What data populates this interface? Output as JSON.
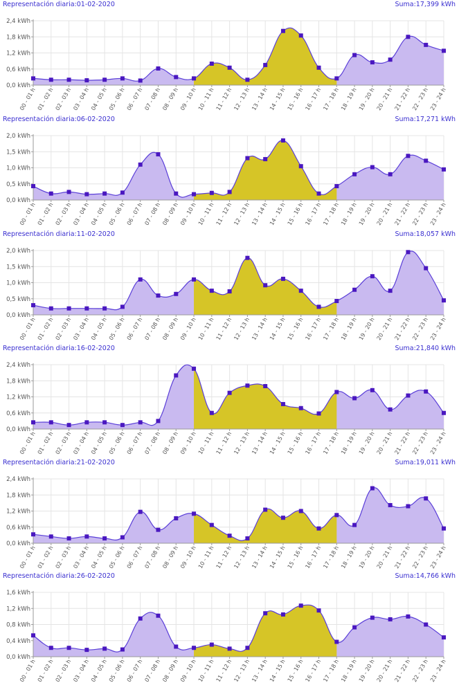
{
  "colors": {
    "accent_text": "#3a2fd0",
    "area_base": "#c9baf0",
    "area_highlight": "#d6c527",
    "line": "#5a3ed8",
    "marker": "#4a18c0",
    "grid": "#e4e4e4",
    "axis": "#9a9a9a"
  },
  "chart_data": [
    {
      "type": "area",
      "title": "Representación diaria:01-02-2020",
      "total": "Suma:17,399 kWh",
      "categories": [
        "00 - 01 h",
        "01 - 02 h",
        "02 - 03 h",
        "03 - 04 h",
        "04 - 05 h",
        "05 - 06 h",
        "06 - 07 h",
        "07 - 08 h",
        "08 - 09 h",
        "09 - 10 h",
        "10 - 11 h",
        "11 - 12 h",
        "12 - 13 h",
        "13 - 14 h",
        "14 - 15 h",
        "15 - 16 h",
        "16 - 17 h",
        "17 - 18 h",
        "18 - 19 h",
        "19 - 20 h",
        "20 - 21 h",
        "21 - 22 h",
        "22 - 23 h",
        "23 - 24 h"
      ],
      "values": [
        0.25,
        0.2,
        0.2,
        0.18,
        0.2,
        0.25,
        0.17,
        0.62,
        0.3,
        0.25,
        0.8,
        0.65,
        0.2,
        0.75,
        2.02,
        1.85,
        0.65,
        0.25,
        1.12,
        0.85,
        0.95,
        1.8,
        1.5,
        1.28
      ],
      "highlight_range": [
        "09 - 10 h",
        "17 - 18 h"
      ],
      "y_ticks": [
        "0,0 kWh",
        "0,6 kWh",
        "1,2 kWh",
        "1,8 kWh",
        "2,4 kWh"
      ],
      "ylim": [
        0,
        2.4
      ],
      "grid": true
    },
    {
      "type": "area",
      "title": "Representación diaria:06-02-2020",
      "total": "Suma:17,271 kWh",
      "categories": [
        "00 - 01 h",
        "01 - 02 h",
        "02 - 03 h",
        "03 - 04 h",
        "04 - 05 h",
        "05 - 06 h",
        "06 - 07 h",
        "07 - 08 h",
        "08 - 09 h",
        "09 - 10 h",
        "10 - 11 h",
        "11 - 12 h",
        "12 - 13 h",
        "13 - 14 h",
        "14 - 15 h",
        "15 - 16 h",
        "16 - 17 h",
        "17 - 18 h",
        "18 - 19 h",
        "19 - 20 h",
        "20 - 21 h",
        "21 - 22 h",
        "22 - 23 h",
        "23 - 24 h"
      ],
      "values": [
        0.43,
        0.2,
        0.25,
        0.18,
        0.2,
        0.23,
        1.1,
        1.42,
        0.2,
        0.18,
        0.22,
        0.25,
        1.3,
        1.27,
        1.85,
        1.05,
        0.2,
        0.43,
        0.8,
        1.02,
        0.8,
        1.37,
        1.22,
        0.95
      ],
      "highlight_range": [
        "09 - 10 h",
        "17 - 18 h"
      ],
      "y_ticks": [
        "0,0 kWh",
        "0,5 kWh",
        "1,0 kWh",
        "1,5 kWh",
        "2,0 kWh"
      ],
      "ylim": [
        0,
        2.0
      ],
      "grid": true
    },
    {
      "type": "area",
      "title": "Representación diaria:11-02-2020",
      "total": "Suma:18,057 kWh",
      "categories": [
        "00 - 01 h",
        "01 - 02 h",
        "02 - 03 h",
        "03 - 04 h",
        "04 - 05 h",
        "05 - 06 h",
        "06 - 07 h",
        "07 - 08 h",
        "08 - 09 h",
        "09 - 10 h",
        "10 - 11 h",
        "11 - 12 h",
        "12 - 13 h",
        "13 - 14 h",
        "14 - 15 h",
        "15 - 16 h",
        "16 - 17 h",
        "17 - 18 h",
        "18 - 19 h",
        "19 - 20 h",
        "20 - 21 h",
        "21 - 22 h",
        "22 - 23 h",
        "23 - 24 h"
      ],
      "values": [
        0.3,
        0.2,
        0.2,
        0.2,
        0.2,
        0.25,
        1.1,
        0.6,
        0.65,
        1.1,
        0.75,
        0.73,
        1.77,
        0.92,
        1.12,
        0.75,
        0.25,
        0.43,
        0.78,
        1.2,
        0.75,
        1.95,
        1.45,
        0.45
      ],
      "highlight_range": [
        "09 - 10 h",
        "17 - 18 h"
      ],
      "y_ticks": [
        "0,0 kWh",
        "0,5 kWh",
        "1,0 kWh",
        "1,5 kWh",
        "2,0 kWh"
      ],
      "ylim": [
        0,
        2.0
      ],
      "grid": true
    },
    {
      "type": "area",
      "title": "Representación diaria:16-02-2020",
      "total": "Suma:21,840 kWh",
      "categories": [
        "00 - 01 h",
        "01 - 02 h",
        "02 - 03 h",
        "03 - 04 h",
        "04 - 05 h",
        "05 - 06 h",
        "06 - 07 h",
        "07 - 08 h",
        "08 - 09 h",
        "09 - 10 h",
        "10 - 11 h",
        "11 - 12 h",
        "12 - 13 h",
        "13 - 14 h",
        "14 - 15 h",
        "15 - 16 h",
        "16 - 17 h",
        "17 - 18 h",
        "18 - 19 h",
        "19 - 20 h",
        "20 - 21 h",
        "21 - 22 h",
        "22 - 23 h",
        "23 - 24 h"
      ],
      "values": [
        0.25,
        0.25,
        0.15,
        0.25,
        0.25,
        0.15,
        0.25,
        0.3,
        2.0,
        2.25,
        0.6,
        1.35,
        1.62,
        1.6,
        0.93,
        0.78,
        0.58,
        1.38,
        1.15,
        1.45,
        0.73,
        1.25,
        1.4,
        0.6
      ],
      "highlight_range": [
        "09 - 10 h",
        "17 - 18 h"
      ],
      "y_ticks": [
        "0,0 kWh",
        "0,6 kWh",
        "1,2 kWh",
        "1,8 kWh",
        "2,4 kWh"
      ],
      "ylim": [
        0,
        2.4
      ],
      "grid": true
    },
    {
      "type": "area",
      "title": "Representación diaria:21-02-2020",
      "total": "Suma:19,011 kWh",
      "categories": [
        "00 - 01 h",
        "01 - 02 h",
        "02 - 03 h",
        "03 - 04 h",
        "04 - 05 h",
        "05 - 06 h",
        "06 - 07 h",
        "07 - 08 h",
        "08 - 09 h",
        "09 - 10 h",
        "10 - 11 h",
        "11 - 12 h",
        "12 - 13 h",
        "13 - 14 h",
        "14 - 15 h",
        "15 - 16 h",
        "16 - 17 h",
        "17 - 18 h",
        "18 - 19 h",
        "19 - 20 h",
        "20 - 21 h",
        "21 - 22 h",
        "22 - 23 h",
        "23 - 24 h"
      ],
      "values": [
        0.33,
        0.25,
        0.18,
        0.25,
        0.18,
        0.22,
        1.17,
        0.5,
        0.93,
        1.1,
        0.68,
        0.28,
        0.18,
        1.25,
        0.95,
        1.2,
        0.55,
        1.05,
        0.68,
        2.05,
        1.42,
        1.38,
        1.67,
        0.55
      ],
      "highlight_range": [
        "09 - 10 h",
        "17 - 18 h"
      ],
      "y_ticks": [
        "0,0 kWh",
        "0,6 kWh",
        "1,2 kWh",
        "1,8 kWh",
        "2,4 kWh"
      ],
      "ylim": [
        0,
        2.4
      ],
      "grid": true
    },
    {
      "type": "area",
      "title": "Representación diaria:26-02-2020",
      "total": "Suma:14,766 kWh",
      "categories": [
        "00 - 01 h",
        "01 - 02 h",
        "02 - 03 h",
        "03 - 04 h",
        "04 - 05 h",
        "05 - 06 h",
        "06 - 07 h",
        "07 - 08 h",
        "08 - 09 h",
        "09 - 10 h",
        "10 - 11 h",
        "11 - 12 h",
        "12 - 13 h",
        "13 - 14 h",
        "14 - 15 h",
        "15 - 16 h",
        "16 - 17 h",
        "17 - 18 h",
        "18 - 19 h",
        "19 - 20 h",
        "20 - 21 h",
        "21 - 22 h",
        "22 - 23 h",
        "23 - 24 h"
      ],
      "values": [
        0.53,
        0.22,
        0.22,
        0.17,
        0.2,
        0.18,
        0.95,
        1.02,
        0.25,
        0.22,
        0.3,
        0.2,
        0.22,
        1.08,
        1.05,
        1.27,
        1.15,
        0.37,
        0.73,
        0.97,
        0.93,
        1.0,
        0.8,
        0.48
      ],
      "highlight_range": [
        "09 - 10 h",
        "17 - 18 h"
      ],
      "y_ticks": [
        "0,0 kWh",
        "0,4 kWh",
        "0,8 kWh",
        "1,2 kWh",
        "1,6 kWh"
      ],
      "ylim": [
        0,
        1.6
      ],
      "grid": true
    }
  ]
}
